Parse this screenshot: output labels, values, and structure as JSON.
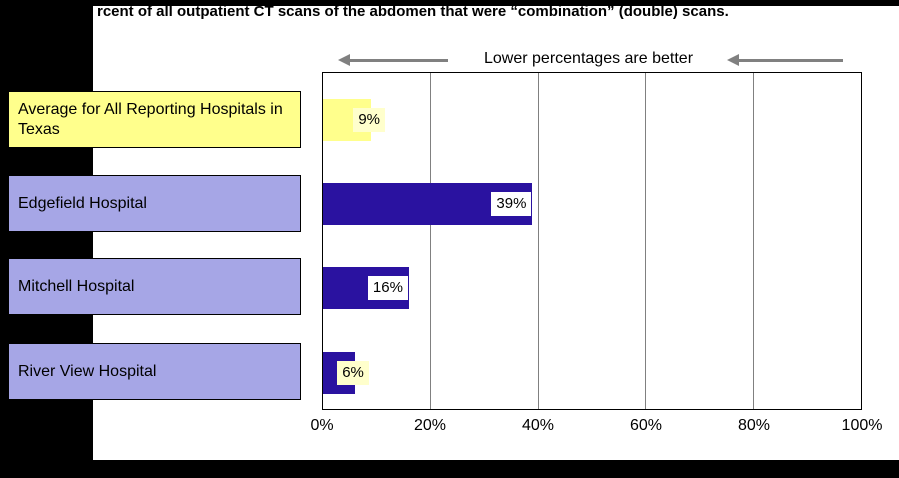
{
  "page": {
    "title": "rcent of all outpatient CT scans of the abdomen that were “combination” (double) scans."
  },
  "chart_data": {
    "type": "bar",
    "orientation": "horizontal",
    "title": "rcent of all outpatient CT scans of the abdomen that were “combination” (double) scans.",
    "annotation": "Lower percentages are better",
    "categories": [
      "Average for All Reporting Hospitals in Texas",
      "Edgefield Hospital",
      "Mitchell Hospital",
      "River View Hospital"
    ],
    "values": [
      9,
      39,
      16,
      6
    ],
    "value_labels": [
      "9%",
      "39%",
      "16%",
      "6%"
    ],
    "x_tick_labels": [
      "0%",
      "20%",
      "40%",
      "60%",
      "80%",
      "100%"
    ],
    "xlim": [
      0,
      100
    ],
    "grid": true,
    "legend": "none",
    "colors": {
      "bar_colors": [
        "#FFFF8C",
        "#2A12A0",
        "#2A12A0",
        "#2A12A0"
      ],
      "category_box_colors": [
        "#FFFF8C",
        "#A6A6E6",
        "#A6A6E6",
        "#A6A6E6"
      ],
      "value_label_bg": [
        "#FFFFCC",
        "#FFFFFF",
        "#FFFFFF",
        "#FFFFCC"
      ],
      "arrow_color": "#808080",
      "gridline_color": "#808080",
      "plot_border": "#000000",
      "background": "#000000",
      "panel": "#FFFFFF"
    }
  }
}
